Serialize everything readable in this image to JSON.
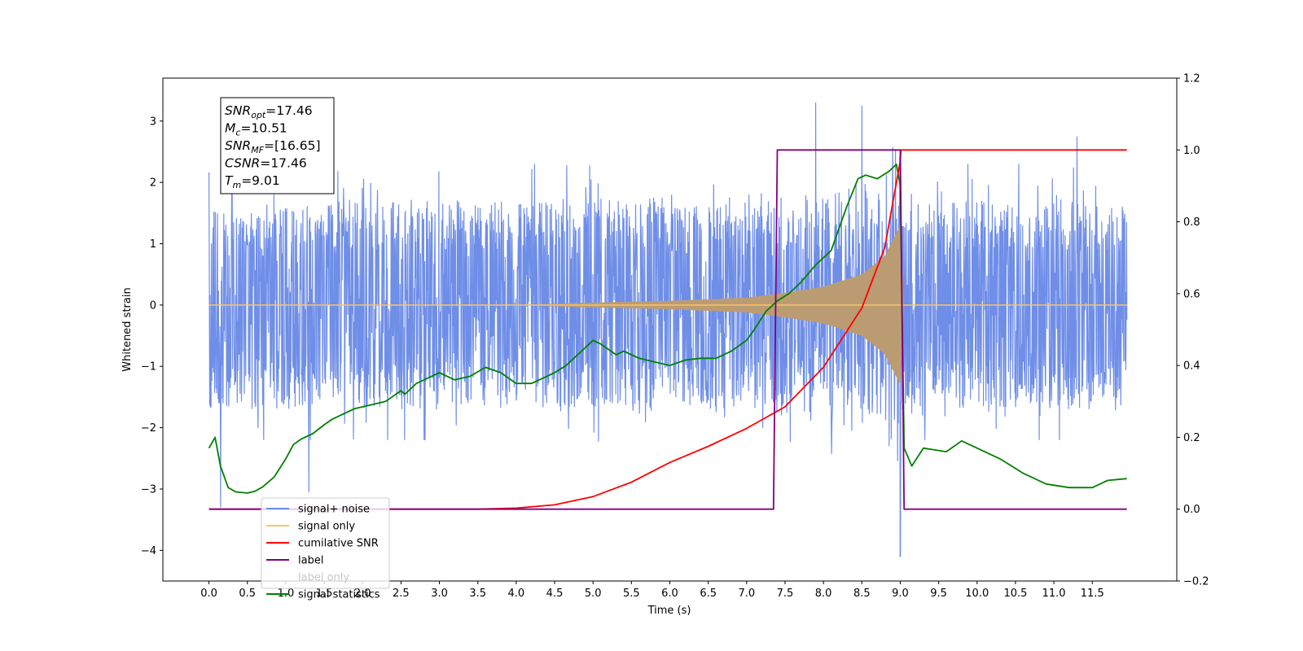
{
  "chart_data": {
    "type": "line",
    "xlabel": "Time (s)",
    "ylabel": "Whitened strain",
    "y2label": "",
    "xlim": [
      -0.6,
      12.6
    ],
    "ylim": [
      -4.5,
      3.7
    ],
    "y2lim": [
      -0.2,
      1.2
    ],
    "xticks": [
      0.0,
      0.5,
      1.0,
      1.5,
      2.0,
      2.5,
      3.0,
      3.5,
      4.0,
      4.5,
      5.0,
      5.5,
      6.0,
      6.5,
      7.0,
      7.5,
      8.0,
      8.5,
      9.0,
      9.5,
      10.0,
      10.5,
      11.0,
      11.5
    ],
    "xtick_labels": [
      "0.0",
      "0.5",
      "1.0",
      "1.5",
      "2.0",
      "2.5",
      "3.0",
      "3.5",
      "4.0",
      "4.5",
      "5.0",
      "5.5",
      "6.0",
      "6.5",
      "7.0",
      "7.5",
      "8.0",
      "8.5",
      "9.0",
      "9.5",
      "10.0",
      "10.5",
      "11.0",
      "11.5"
    ],
    "yticks": [
      -4,
      -3,
      -2,
      -1,
      0,
      1,
      2,
      3
    ],
    "ytick_labels": [
      "−4",
      "−3",
      "−2",
      "−1",
      "0",
      "1",
      "2",
      "3"
    ],
    "y2ticks": [
      -0.2,
      0.0,
      0.2,
      0.4,
      0.6,
      0.8,
      1.0,
      1.2
    ],
    "y2tick_labels": [
      "−0.2",
      "0.0",
      "0.2",
      "0.4",
      "0.6",
      "0.8",
      "1.0",
      "1.2"
    ],
    "grid": false,
    "legend_position": "lower-left",
    "annotation": [
      {
        "base": "SNR",
        "sub": "opt",
        "value": "=17.46"
      },
      {
        "base": "M",
        "sub": "c",
        "value": "=10.51"
      },
      {
        "base": "SNR",
        "sub": "MF",
        "value": "=[16.65]"
      },
      {
        "base": "CSNR",
        "sub": "",
        "value": "=17.46"
      },
      {
        "base": "T",
        "sub": "m",
        "value": "=9.01"
      }
    ],
    "series": [
      {
        "name": "signal+ noise",
        "axis": "left",
        "color": "#6f8ee8",
        "description_range": [
          -4.1,
          3.35
        ],
        "noise_envelope": {
          "x": [
            0.0,
            11.95
          ],
          "typical_amplitude": 1.8,
          "peaks": [
            [
              0.15,
              -3.3
            ],
            [
              1.3,
              -3.05
            ],
            [
              7.9,
              3.3
            ],
            [
              8.5,
              3.25
            ],
            [
              9.0,
              3.35
            ],
            [
              9.0,
              -4.1
            ],
            [
              11.3,
              2.75
            ]
          ]
        }
      },
      {
        "name": "signal only",
        "axis": "left",
        "color": "#f5c468",
        "chirp": {
          "start": 0.0,
          "merger": 9.01,
          "end": 11.95,
          "amplitude_at": [
            [
              4.0,
              0.0
            ],
            [
              5.0,
              0.04
            ],
            [
              6.0,
              0.07
            ],
            [
              7.0,
              0.12
            ],
            [
              7.5,
              0.2
            ],
            [
              8.0,
              0.3
            ],
            [
              8.5,
              0.5
            ],
            [
              8.8,
              0.8
            ],
            [
              9.0,
              1.3
            ],
            [
              9.05,
              0.0
            ]
          ]
        }
      },
      {
        "name": "cumilative SNR",
        "axis": "right",
        "color": "#ff0000",
        "x": [
          0.0,
          3.5,
          4.0,
          4.5,
          5.0,
          5.5,
          6.0,
          6.5,
          7.0,
          7.5,
          8.0,
          8.5,
          8.8,
          9.0,
          9.01,
          11.95
        ],
        "y": [
          0.0,
          0.0,
          0.003,
          0.012,
          0.035,
          0.075,
          0.13,
          0.175,
          0.225,
          0.285,
          0.395,
          0.56,
          0.73,
          0.97,
          1.0,
          1.0
        ]
      },
      {
        "name": "label",
        "axis": "right",
        "color": "#800080",
        "x": [
          0.0,
          7.35,
          7.4,
          9.0,
          9.05,
          11.95
        ],
        "y": [
          0.0,
          0.0,
          1.0,
          1.0,
          0.0,
          0.0
        ]
      },
      {
        "name": "label only",
        "axis": "right",
        "color": "#c8c8c8",
        "x": [],
        "y": []
      },
      {
        "name": "signal statistics",
        "axis": "right",
        "color": "#008000",
        "x": [
          0.0,
          0.08,
          0.15,
          0.25,
          0.35,
          0.5,
          0.6,
          0.7,
          0.85,
          1.0,
          1.1,
          1.2,
          1.35,
          1.5,
          1.6,
          1.7,
          1.9,
          2.1,
          2.3,
          2.5,
          2.55,
          2.7,
          2.9,
          3.0,
          3.2,
          3.4,
          3.6,
          3.8,
          4.0,
          4.2,
          4.4,
          4.5,
          4.65,
          4.75,
          4.9,
          5.0,
          5.1,
          5.3,
          5.4,
          5.6,
          5.8,
          6.0,
          6.2,
          6.4,
          6.6,
          6.8,
          7.0,
          7.1,
          7.25,
          7.4,
          7.55,
          7.7,
          7.9,
          8.1,
          8.3,
          8.45,
          8.55,
          8.7,
          8.85,
          8.95,
          9.0,
          9.05,
          9.15,
          9.3,
          9.6,
          9.8,
          10.0,
          10.3,
          10.6,
          10.9,
          11.2,
          11.5,
          11.7,
          11.95
        ],
        "y": [
          0.17,
          0.2,
          0.12,
          0.06,
          0.048,
          0.045,
          0.05,
          0.062,
          0.09,
          0.14,
          0.18,
          0.195,
          0.21,
          0.235,
          0.25,
          0.26,
          0.28,
          0.29,
          0.3,
          0.33,
          0.32,
          0.35,
          0.37,
          0.38,
          0.36,
          0.37,
          0.395,
          0.38,
          0.35,
          0.35,
          0.37,
          0.38,
          0.4,
          0.42,
          0.45,
          0.47,
          0.46,
          0.43,
          0.44,
          0.42,
          0.41,
          0.4,
          0.415,
          0.42,
          0.42,
          0.44,
          0.47,
          0.5,
          0.55,
          0.58,
          0.6,
          0.63,
          0.68,
          0.72,
          0.84,
          0.92,
          0.93,
          0.92,
          0.94,
          0.96,
          0.9,
          0.17,
          0.12,
          0.17,
          0.16,
          0.19,
          0.17,
          0.14,
          0.1,
          0.07,
          0.06,
          0.06,
          0.08,
          0.085
        ]
      }
    ]
  }
}
